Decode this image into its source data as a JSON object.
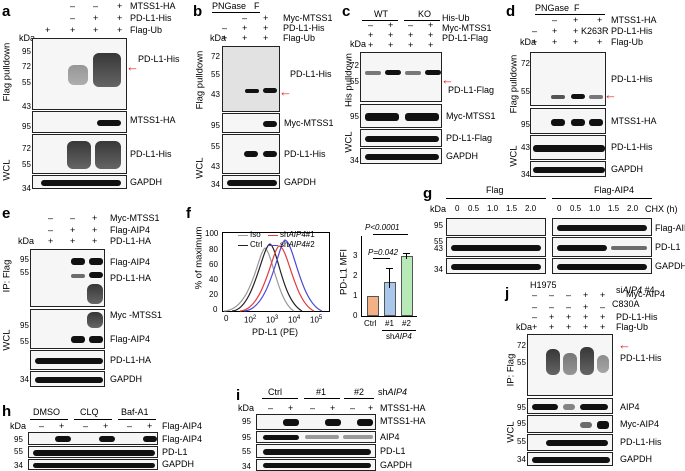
{
  "panel_letters": [
    "a",
    "b",
    "c",
    "d",
    "e",
    "f",
    "g",
    "h",
    "i",
    "j"
  ],
  "common": {
    "kda": "kDa",
    "flag_pulldown": "Flag pulldown",
    "his_pulldown": "His pulldown",
    "wcl": "WCL",
    "ip_flag": "IP: Flag",
    "gapdh": "GAPDH",
    "pngase": "PNGase",
    "pngase_f": "F",
    "plus": "+",
    "minus": "–",
    "h1975": "H1975"
  },
  "a": {
    "row1": "MTSS1-HA",
    "row2": "PD-L1-His",
    "row3": "Flag-Ub",
    "m95": "95",
    "m72": "72",
    "m55": "55",
    "m43": "43",
    "m34": "34",
    "b1": "PD-L1-His",
    "b2": "MTSS1-HA",
    "b3": "PD-L1-His"
  },
  "b": {
    "row1": "Myc-MTSS1",
    "row2": "PD-L1-His",
    "row3": "Flag-Ub",
    "m72": "72",
    "m55": "55",
    "m43": "43",
    "m95": "95",
    "m34": "34",
    "b1": "PD-L1-His",
    "b2": "Myc-MTSS1",
    "b3": "PD-L1-His"
  },
  "c": {
    "wt": "WT",
    "ko": "KO",
    "row1": "His-Ub",
    "row2": "Myc-MTSS1",
    "row3": "PD-L1-Flag",
    "m72": "72",
    "m55": "55",
    "m95": "95",
    "m34": "34",
    "b1": "PD-L1-Flag",
    "b2": "Myc-MTSS1",
    "b3": "PD-L1-Flag"
  },
  "d": {
    "row1": "MTSS1-HA",
    "row2": "PD-L1-His",
    "row3": "Flag-Ub",
    "mut": "K263R",
    "m72": "72",
    "m55": "55",
    "m95": "95",
    "m43": "43",
    "m34": "34",
    "b1": "PD-L1-His",
    "b2": "MTSS1-HA",
    "b3": "PD-L1-His"
  },
  "e": {
    "row1": "Myc-MTSS1",
    "row2": "Flag-AIP4",
    "row3": "PD-L1-HA",
    "m95": "95",
    "m55": "55",
    "m34": "34",
    "b1": "Flag-AIP4",
    "b2": "PD-L1-HA",
    "b3": "Myc -MTSS1",
    "b4": "Flag-AIP4",
    "b5": "PD-L1-HA"
  },
  "f": {
    "ylab": "% of maximum",
    "xlab": "PD-L1 (PE)",
    "leg_iso": "Iso",
    "leg_ctrl": "Ctrl",
    "leg_sh1_pre": "sh",
    "leg_sh1_it": "AIP4",
    "leg_sh1_post": "#1",
    "leg_sh2_post": "#2",
    "yt100": "100",
    "yt80": "80",
    "yt60": "60",
    "yt40": "40",
    "yt20": "20",
    "yt0": "0",
    "xt0": "0",
    "xt2": "10",
    "xt3": "10",
    "xt4": "10",
    "xt5": "10",
    "e2": "2",
    "e3": "3",
    "e4": "4",
    "e5": "5",
    "mfi_lab": "PD-L1 MFI",
    "p1": "P=0.042",
    "p2": "P<0.0001",
    "bt0": "0",
    "bt1": "1",
    "bt2": "2",
    "bt3": "3",
    "cat_ctrl": "Ctrl",
    "cat_1": "#1",
    "cat_2": "#2",
    "sh_lab_pre": "sh",
    "sh_lab_it": "AIP4"
  },
  "g": {
    "flag": "Flag",
    "flag_aip4": "Flag-AIP4",
    "chx": "CHX (h)",
    "times": [
      "0",
      "0.5",
      "1.0",
      "1.5",
      "2.0",
      "0",
      "0.5",
      "1.0",
      "1.5",
      "2.0"
    ],
    "m95": "95",
    "m55": "55",
    "m43": "43",
    "m34": "34",
    "b1": "Flag-AIP4",
    "b2": "PD-L1",
    "b3": "GAPDH"
  },
  "h": {
    "dmso": "DMSO",
    "clq": "CLQ",
    "baf": "Baf-A1",
    "m95": "95",
    "m55": "55",
    "m34": "34",
    "b1": "Flag-AIP4",
    "b2": "Flag-AIP4",
    "b3": "PD-L1",
    "b4": "GAPDH"
  },
  "i": {
    "ctrl": "Ctrl",
    "n1": "#1",
    "n2": "#2",
    "sh_pre": "sh",
    "sh_it": "AIP4",
    "row1": "MTSS1-HA",
    "m95": "95",
    "m55": "55",
    "m34": "34",
    "b1": "MTSS1-HA",
    "b2": "AIP4",
    "b3": "PD-L1",
    "b4": "GAPDH"
  },
  "j": {
    "row1_pre": "si",
    "row1_it": "AIP4",
    "row1_post": " #4",
    "c830": "C830A",
    "row2": "Myc-AIP4",
    "row3": "PD-L1-His",
    "row4": "Flag-Ub",
    "m72": "72",
    "m55": "55",
    "m95": "95",
    "m34": "34",
    "b1": "PD-L1-His",
    "b2": "AIP4",
    "b3": "Myc-AIP4",
    "b4": "PD-L1-His",
    "b5": "GAPDH"
  }
}
